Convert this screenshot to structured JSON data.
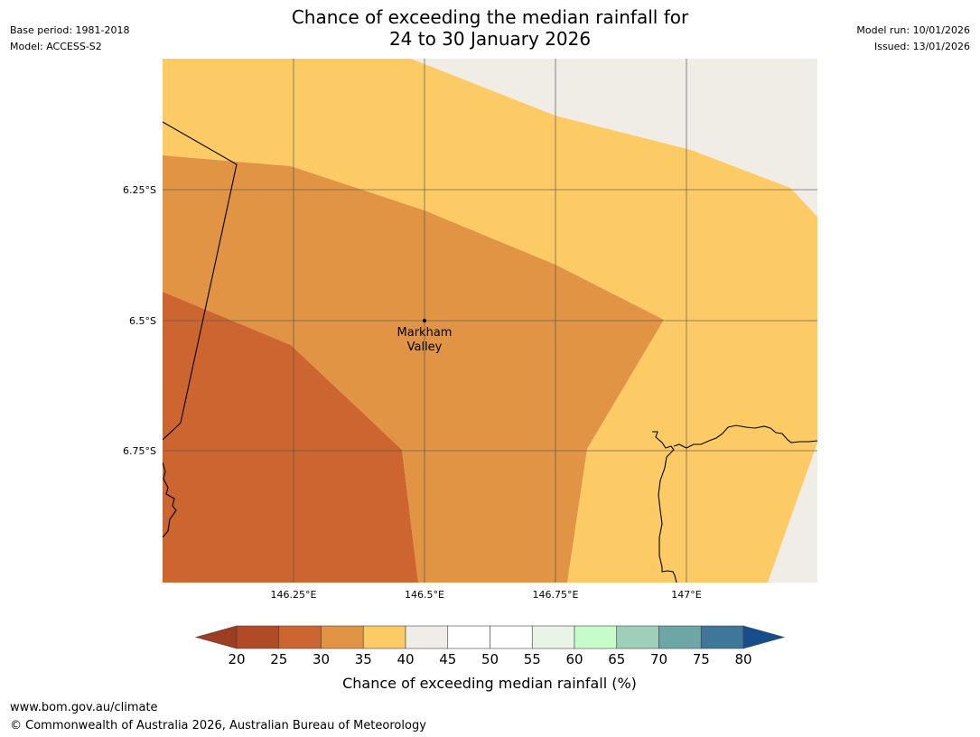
{
  "title": {
    "line1": "Chance of exceeding the median rainfall for",
    "line2": "24 to 30 January 2026"
  },
  "meta": {
    "base_period": "Base period: 1981-2018",
    "model": "Model: ACCESS-S2",
    "model_run": "Model run: 10/01/2026",
    "issued": "Issued: 13/01/2026"
  },
  "map": {
    "lat_labels": [
      "6.25°S",
      "6.5°S",
      "6.75°S"
    ],
    "lon_labels": [
      "146.25°E",
      "146.5°E",
      "146.75°E",
      "147°E"
    ],
    "place_label_line1": "Markham",
    "place_label_line2": "Valley"
  },
  "colorbar": {
    "ticks": [
      "20",
      "25",
      "30",
      "35",
      "40",
      "45",
      "50",
      "55",
      "60",
      "65",
      "70",
      "75",
      "80"
    ],
    "colors": [
      "#b14a26",
      "#cc6530",
      "#e09444",
      "#fdcb65",
      "#f0ece6",
      "#ffffff",
      "#ffffff",
      "#e8f5e6",
      "#c6fcc9",
      "#9dcfba",
      "#6ea5a5",
      "#3e779a"
    ],
    "under_color": "#9e3c24",
    "over_color": "#164d8c",
    "label": "Chance of exceeding median rainfall (%)"
  },
  "footer": {
    "website": "www.bom.gov.au/climate",
    "copyright": "© Commonwealth of Australia 2026, Australian Bureau of Meteorology"
  }
}
